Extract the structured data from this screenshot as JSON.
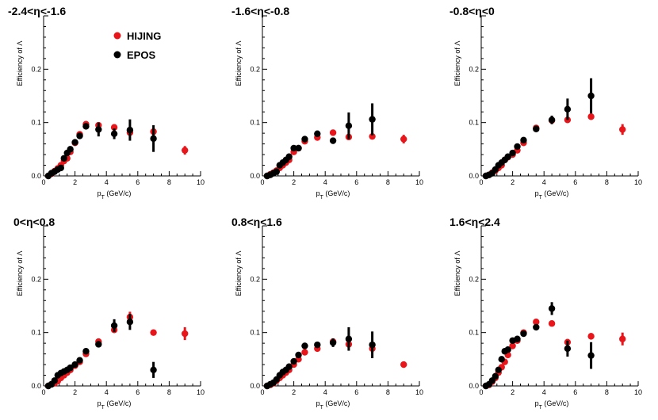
{
  "figure": {
    "legend": [
      {
        "name": "HIJING",
        "color": "#e8161b"
      },
      {
        "name": "EPOS",
        "color": "#000000"
      }
    ]
  },
  "chart_data": [
    {
      "type": "scatter",
      "title": "-2.4<η<-1.6",
      "xlabel": "p_T (GeV/c)",
      "ylabel": "Efficiency of Λ",
      "xlim": [
        0,
        10
      ],
      "ylim": [
        0,
        0.3
      ],
      "xticks": [
        0,
        2,
        4,
        6,
        8,
        10
      ],
      "yticks": [
        0.0,
        0.1,
        0.2
      ],
      "tick_labels_x": [
        "0",
        "2",
        "4",
        "6",
        "8",
        "10"
      ],
      "tick_labels_y": [
        "0.0",
        "0.1",
        "0.2"
      ],
      "series": [
        {
          "name": "HIJING",
          "color": "#e8161b",
          "x": [
            0.3,
            0.5,
            0.7,
            0.9,
            1.1,
            1.3,
            1.5,
            1.7,
            2.0,
            2.3,
            2.7,
            3.5,
            4.5,
            5.5,
            7.0,
            9.0
          ],
          "y": [
            0.0,
            0.004,
            0.009,
            0.014,
            0.02,
            0.028,
            0.033,
            0.045,
            0.062,
            0.078,
            0.097,
            0.095,
            0.091,
            0.081,
            0.083,
            0.048
          ],
          "err": [
            0,
            0,
            0,
            0,
            0,
            0,
            0,
            0,
            0,
            0,
            0,
            0.004,
            0.003,
            0.004,
            0.005,
            0.008
          ]
        },
        {
          "name": "EPOS",
          "color": "#000000",
          "x": [
            0.3,
            0.5,
            0.7,
            0.9,
            1.1,
            1.3,
            1.5,
            1.7,
            2.0,
            2.3,
            2.7,
            3.5,
            4.5,
            5.5,
            7.0
          ],
          "y": [
            0.0,
            0.005,
            0.008,
            0.012,
            0.015,
            0.033,
            0.043,
            0.05,
            0.063,
            0.075,
            0.093,
            0.087,
            0.079,
            0.086,
            0.07
          ],
          "err": [
            0,
            0,
            0,
            0,
            0,
            0,
            0,
            0,
            0,
            0,
            0.005,
            0.013,
            0.01,
            0.02,
            0.025
          ]
        }
      ]
    },
    {
      "type": "scatter",
      "title": "-1.6<η<-0.8",
      "xlabel": "p_T (GeV/c)",
      "ylabel": "Efficiency of Λ",
      "xlim": [
        0,
        10
      ],
      "ylim": [
        0,
        0.3
      ],
      "xticks": [
        0,
        2,
        4,
        6,
        8,
        10
      ],
      "yticks": [
        0.0,
        0.1,
        0.2
      ],
      "tick_labels_x": [
        "0",
        "2",
        "4",
        "6",
        "8",
        "10"
      ],
      "tick_labels_y": [
        "0.0",
        "0.1",
        "0.2"
      ],
      "series": [
        {
          "name": "HIJING",
          "color": "#e8161b",
          "x": [
            0.3,
            0.5,
            0.7,
            0.9,
            1.1,
            1.3,
            1.5,
            1.7,
            2.0,
            2.3,
            2.7,
            3.5,
            4.5,
            5.5,
            7.0,
            9.0
          ],
          "y": [
            0.0,
            0.003,
            0.006,
            0.01,
            0.015,
            0.02,
            0.025,
            0.03,
            0.045,
            0.052,
            0.065,
            0.072,
            0.081,
            0.073,
            0.074,
            0.069
          ],
          "err": [
            0,
            0,
            0,
            0,
            0,
            0,
            0,
            0,
            0,
            0,
            0,
            0,
            0,
            0.003,
            0.003,
            0.008
          ]
        },
        {
          "name": "EPOS",
          "color": "#000000",
          "x": [
            0.3,
            0.5,
            0.7,
            0.9,
            1.1,
            1.3,
            1.5,
            1.7,
            2.0,
            2.3,
            2.7,
            3.5,
            4.5,
            5.5,
            7.0
          ],
          "y": [
            0.0,
            0.002,
            0.005,
            0.008,
            0.02,
            0.025,
            0.03,
            0.036,
            0.052,
            0.052,
            0.069,
            0.079,
            0.066,
            0.094,
            0.106
          ],
          "err": [
            0,
            0,
            0,
            0,
            0,
            0,
            0,
            0,
            0,
            0,
            0.006,
            0.006,
            0.006,
            0.025,
            0.03
          ]
        }
      ]
    },
    {
      "type": "scatter",
      "title": "-0.8<η<0",
      "xlabel": "p_T (GeV/c)",
      "ylabel": "Efficiency of Λ",
      "xlim": [
        0,
        10
      ],
      "ylim": [
        0,
        0.3
      ],
      "xticks": [
        0,
        2,
        4,
        6,
        8,
        10
      ],
      "yticks": [
        0.0,
        0.1,
        0.2
      ],
      "tick_labels_x": [
        "0",
        "2",
        "4",
        "6",
        "8",
        "10"
      ],
      "tick_labels_y": [
        "0.0",
        "0.1",
        "0.2"
      ],
      "series": [
        {
          "name": "HIJING",
          "color": "#e8161b",
          "x": [
            0.3,
            0.5,
            0.7,
            0.9,
            1.1,
            1.3,
            1.5,
            1.7,
            2.0,
            2.3,
            2.7,
            3.5,
            4.5,
            5.5,
            7.0,
            9.0
          ],
          "y": [
            0.0,
            0.002,
            0.006,
            0.01,
            0.015,
            0.02,
            0.03,
            0.035,
            0.04,
            0.048,
            0.062,
            0.09,
            0.104,
            0.105,
            0.111,
            0.087
          ],
          "err": [
            0,
            0,
            0,
            0,
            0,
            0,
            0,
            0,
            0,
            0,
            0,
            0,
            0.004,
            0.004,
            0.004,
            0.01
          ]
        },
        {
          "name": "EPOS",
          "color": "#000000",
          "x": [
            0.3,
            0.5,
            0.7,
            0.9,
            1.1,
            1.3,
            1.5,
            1.7,
            2.0,
            2.3,
            2.7,
            3.5,
            4.5,
            5.5,
            7.0
          ],
          "y": [
            0.0,
            0.002,
            0.005,
            0.012,
            0.02,
            0.025,
            0.03,
            0.036,
            0.043,
            0.055,
            0.067,
            0.088,
            0.105,
            0.125,
            0.15
          ],
          "err": [
            0,
            0,
            0,
            0,
            0,
            0,
            0,
            0,
            0,
            0,
            0,
            0.004,
            0.008,
            0.02,
            0.033
          ]
        }
      ]
    },
    {
      "type": "scatter",
      "title": "0<η<0.8",
      "xlabel": "p_T (GeV/c)",
      "ylabel": "Efficiency of Λ",
      "xlim": [
        0,
        10
      ],
      "ylim": [
        0,
        0.3
      ],
      "xticks": [
        0,
        2,
        4,
        6,
        8,
        10
      ],
      "yticks": [
        0.0,
        0.1,
        0.2
      ],
      "tick_labels_x": [
        "0",
        "2",
        "4",
        "6",
        "8",
        "10"
      ],
      "tick_labels_y": [
        "0.0",
        "0.1",
        "0.2"
      ],
      "series": [
        {
          "name": "HIJING",
          "color": "#e8161b",
          "x": [
            0.3,
            0.5,
            0.7,
            0.9,
            1.1,
            1.3,
            1.5,
            1.7,
            2.0,
            2.3,
            2.7,
            3.5,
            4.5,
            5.5,
            7.0,
            9.0
          ],
          "y": [
            0.0,
            0.003,
            0.005,
            0.009,
            0.015,
            0.02,
            0.025,
            0.03,
            0.038,
            0.045,
            0.06,
            0.083,
            0.105,
            0.129,
            0.1,
            0.098
          ],
          "err": [
            0,
            0,
            0,
            0,
            0,
            0,
            0,
            0,
            0,
            0,
            0,
            0,
            0.005,
            0.01,
            0.004,
            0.012
          ]
        },
        {
          "name": "EPOS",
          "color": "#000000",
          "x": [
            0.3,
            0.5,
            0.7,
            0.9,
            1.1,
            1.3,
            1.5,
            1.7,
            2.0,
            2.3,
            2.7,
            3.5,
            4.5,
            5.5,
            7.0
          ],
          "y": [
            0.0,
            0.003,
            0.01,
            0.02,
            0.024,
            0.027,
            0.03,
            0.034,
            0.04,
            0.048,
            0.065,
            0.078,
            0.113,
            0.12,
            0.03
          ],
          "err": [
            0,
            0,
            0,
            0,
            0,
            0,
            0,
            0,
            0,
            0,
            0.005,
            0.005,
            0.012,
            0.015,
            0.015
          ]
        }
      ]
    },
    {
      "type": "scatter",
      "title": "0.8<η<1.6",
      "xlabel": "p_T (GeV/c)",
      "ylabel": "Efficiency of Λ",
      "xlim": [
        0,
        10
      ],
      "ylim": [
        0,
        0.3
      ],
      "xticks": [
        0,
        2,
        4,
        6,
        8,
        10
      ],
      "yticks": [
        0.0,
        0.1,
        0.2
      ],
      "tick_labels_x": [
        "0",
        "2",
        "4",
        "6",
        "8",
        "10"
      ],
      "tick_labels_y": [
        "0.0",
        "0.1",
        "0.2"
      ],
      "series": [
        {
          "name": "HIJING",
          "color": "#e8161b",
          "x": [
            0.3,
            0.5,
            0.7,
            0.9,
            1.1,
            1.3,
            1.5,
            1.7,
            2.0,
            2.3,
            2.7,
            3.5,
            4.5,
            5.5,
            7.0,
            9.0
          ],
          "y": [
            0.0,
            0.002,
            0.005,
            0.01,
            0.015,
            0.02,
            0.025,
            0.03,
            0.04,
            0.05,
            0.063,
            0.07,
            0.083,
            0.078,
            0.07,
            0.04
          ],
          "err": [
            0,
            0,
            0,
            0,
            0,
            0,
            0,
            0,
            0,
            0,
            0,
            0,
            0.004,
            0.005,
            0.008,
            0.006
          ]
        },
        {
          "name": "EPOS",
          "color": "#000000",
          "x": [
            0.3,
            0.5,
            0.7,
            0.9,
            1.1,
            1.3,
            1.5,
            1.7,
            2.0,
            2.3,
            2.7,
            3.5,
            4.5,
            5.5,
            7.0
          ],
          "y": [
            0.0,
            0.003,
            0.006,
            0.012,
            0.02,
            0.026,
            0.03,
            0.036,
            0.046,
            0.058,
            0.075,
            0.077,
            0.081,
            0.088,
            0.077
          ],
          "err": [
            0,
            0,
            0,
            0,
            0,
            0,
            0,
            0,
            0,
            0,
            0.004,
            0.005,
            0.008,
            0.022,
            0.025
          ]
        }
      ]
    },
    {
      "type": "scatter",
      "title": "1.6<η<2.4",
      "xlabel": "p_T (GeV/c)",
      "ylabel": "Efficiency of Λ",
      "xlim": [
        0,
        10
      ],
      "ylim": [
        0,
        0.3
      ],
      "xticks": [
        0,
        2,
        4,
        6,
        8,
        10
      ],
      "yticks": [
        0.0,
        0.1,
        0.2
      ],
      "tick_labels_x": [
        "0",
        "2",
        "4",
        "6",
        "8",
        "10"
      ],
      "tick_labels_y": [
        "0.0",
        "0.1",
        "0.2"
      ],
      "series": [
        {
          "name": "HIJING",
          "color": "#e8161b",
          "x": [
            0.3,
            0.5,
            0.7,
            0.9,
            1.1,
            1.3,
            1.5,
            1.7,
            2.0,
            2.3,
            2.7,
            3.5,
            4.5,
            5.5,
            7.0,
            9.0
          ],
          "y": [
            0.0,
            0.002,
            0.008,
            0.015,
            0.025,
            0.035,
            0.045,
            0.058,
            0.075,
            0.085,
            0.1,
            0.12,
            0.117,
            0.082,
            0.093,
            0.088
          ],
          "err": [
            0,
            0,
            0,
            0,
            0,
            0,
            0,
            0,
            0,
            0,
            0,
            0,
            0,
            0.006,
            0.006,
            0.012
          ]
        },
        {
          "name": "EPOS",
          "color": "#000000",
          "x": [
            0.3,
            0.5,
            0.7,
            0.9,
            1.1,
            1.3,
            1.5,
            1.7,
            2.0,
            2.3,
            2.7,
            3.5,
            4.5,
            5.5,
            7.0
          ],
          "y": [
            0.0,
            0.003,
            0.01,
            0.018,
            0.03,
            0.05,
            0.065,
            0.068,
            0.085,
            0.088,
            0.098,
            0.11,
            0.145,
            0.07,
            0.057
          ],
          "err": [
            0,
            0,
            0,
            0,
            0,
            0,
            0,
            0,
            0,
            0,
            0.004,
            0.005,
            0.012,
            0.015,
            0.025
          ]
        }
      ]
    }
  ]
}
